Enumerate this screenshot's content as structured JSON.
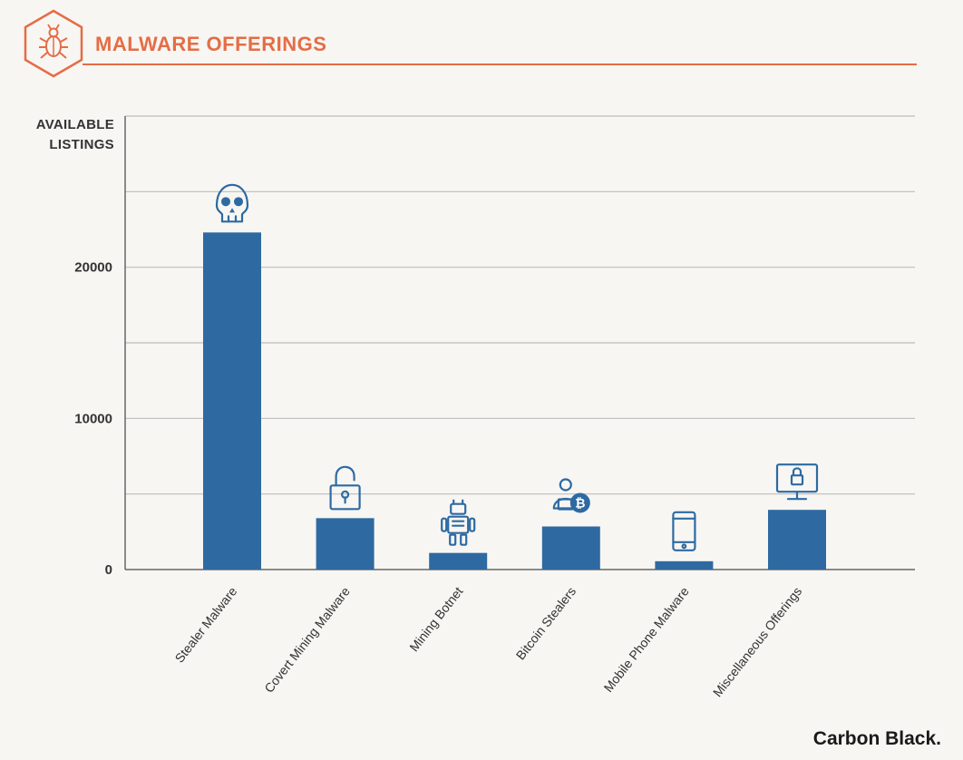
{
  "header": {
    "title": "MALWARE OFFERINGS",
    "logo_icon": "bug-icon"
  },
  "brand": "Carbon Black.",
  "colors": {
    "accent": "#e56d45",
    "bar": "#2e6aa1",
    "grid": "#bdbdbd",
    "text": "#333333"
  },
  "chart_data": {
    "type": "bar",
    "title": "MALWARE OFFERINGS",
    "ylabel_lines": [
      "AVAILABLE",
      "LISTINGS"
    ],
    "xlabel": "",
    "ylim": [
      0,
      30000
    ],
    "gridlines": [
      5000,
      10000,
      15000,
      20000,
      25000,
      30000
    ],
    "yticks": [
      0,
      10000,
      20000
    ],
    "categories": [
      "Stealer Malware",
      "Covert Mining Malware",
      "Mining Botnet",
      "Bitcoin Stealers",
      "Mobile Phone Malware",
      "Miscellaneous Offerings"
    ],
    "values": [
      22300,
      3400,
      1100,
      2850,
      550,
      3950
    ],
    "icons": [
      "skull-icon",
      "padlock-icon",
      "robot-icon",
      "bitcoin-user-icon",
      "smartphone-icon",
      "monitor-lock-icon"
    ]
  }
}
